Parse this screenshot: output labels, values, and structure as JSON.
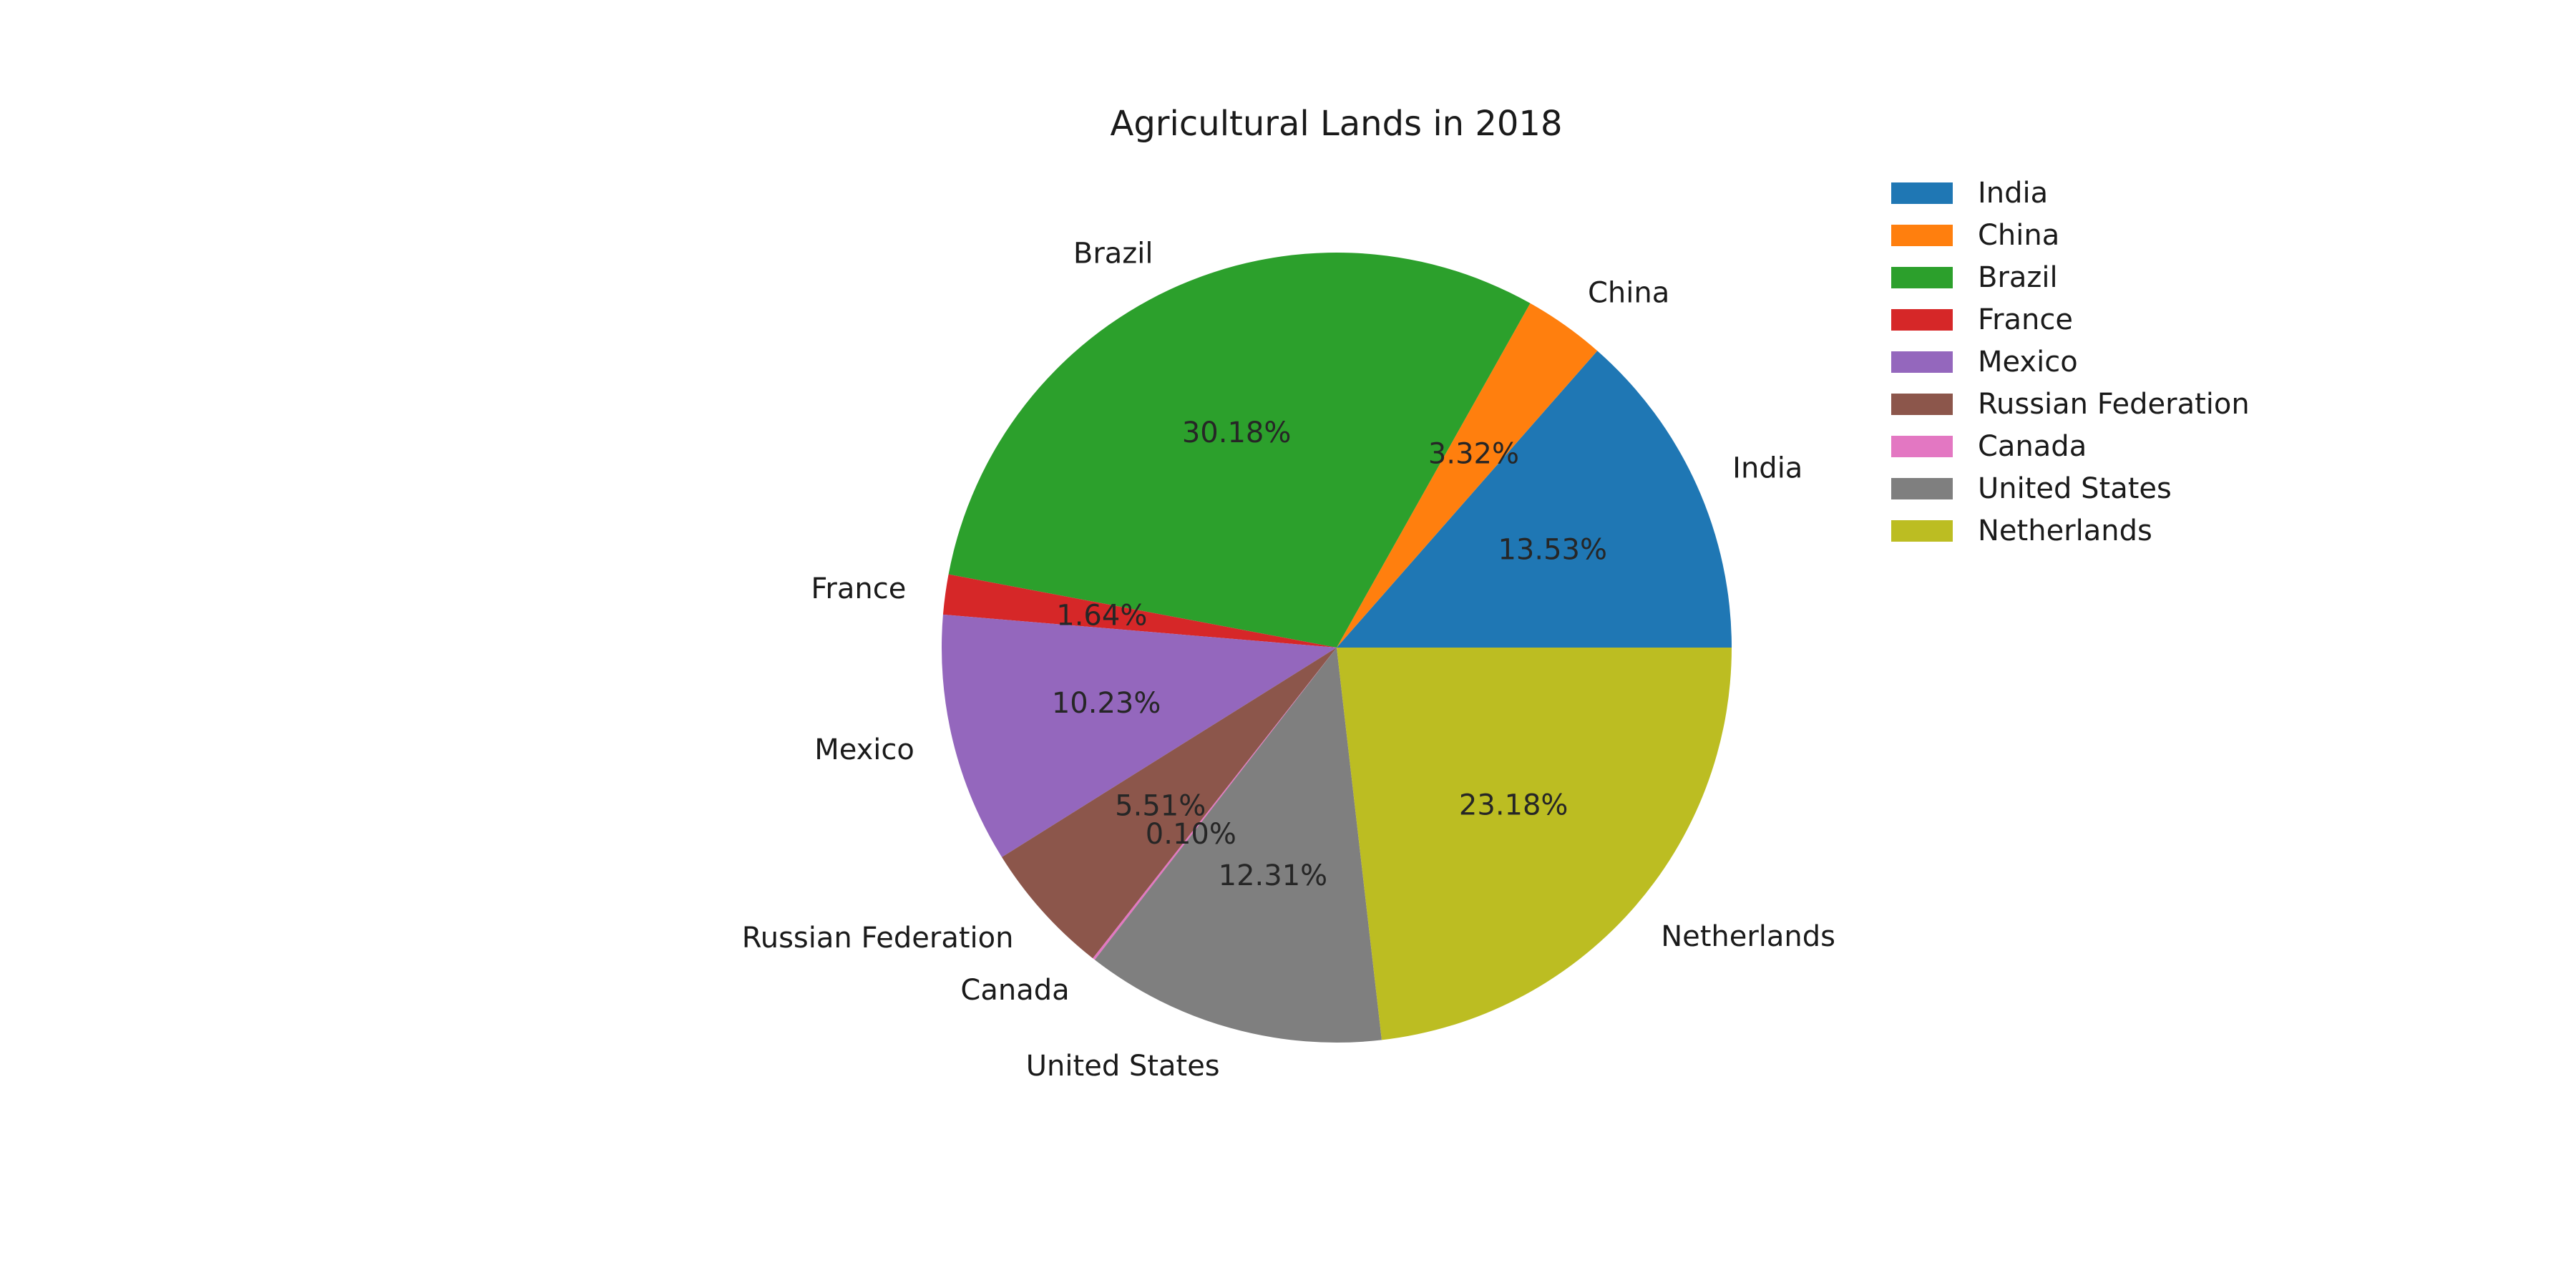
{
  "chart_data": {
    "type": "pie",
    "title": "Agricultural Lands in 2018",
    "categories": [
      "India",
      "China",
      "Brazil",
      "France",
      "Mexico",
      "Russian Federation",
      "Canada",
      "United States",
      "Netherlands"
    ],
    "values": [
      13.53,
      3.32,
      30.18,
      1.64,
      10.23,
      5.51,
      0.1,
      12.31,
      23.18
    ],
    "value_labels": [
      "13.53%",
      "3.32%",
      "30.18%",
      "1.64%",
      "10.23%",
      "5.51%",
      "0.10%",
      "12.31%",
      "23.18%"
    ],
    "colors": [
      "#1f77b4",
      "#ff7f0e",
      "#2ca02c",
      "#d62728",
      "#9467bd",
      "#8c564b",
      "#e377c2",
      "#7f7f7f",
      "#bcbd22"
    ],
    "start_angle_deg": 0,
    "direction": "counterclockwise",
    "legend": {
      "position": "top-right"
    }
  }
}
